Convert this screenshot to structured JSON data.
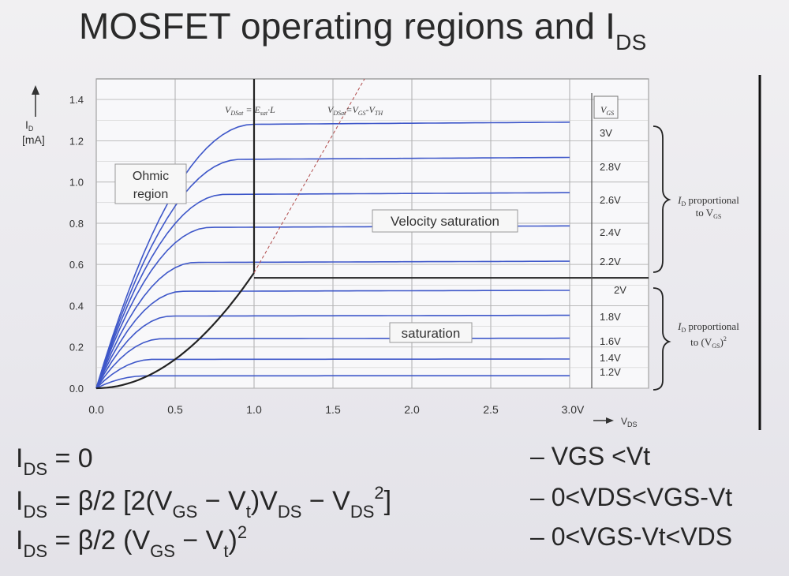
{
  "slide": {
    "title_main": "MOSFET operating regions and I",
    "title_sub": "DS"
  },
  "chart_data": {
    "type": "line",
    "ylabel_line1": "I",
    "ylabel_sub": "D",
    "ylabel_line2": "[mA]",
    "xlabel": "V",
    "xlabel_sub": "DS",
    "xlim": [
      0,
      3.5
    ],
    "ylim": [
      0,
      1.5
    ],
    "x_ticks": [
      "0.0",
      "0.5",
      "1.0",
      "1.5",
      "2.0",
      "2.5",
      "3.0V"
    ],
    "y_ticks": [
      "0.0",
      "0.2",
      "0.4",
      "0.6",
      "0.8",
      "1.0",
      "1.2",
      "1.4"
    ],
    "grid": true,
    "legend_title": "V",
    "legend_title_sub": "GS",
    "series": [
      {
        "name": "3V",
        "saturation_current": 1.28
      },
      {
        "name": "2.8V",
        "saturation_current": 1.11
      },
      {
        "name": "2.6V",
        "saturation_current": 0.94
      },
      {
        "name": "2.4V",
        "saturation_current": 0.78
      },
      {
        "name": "2.2V",
        "saturation_current": 0.61
      },
      {
        "name": "2V",
        "saturation_current": 0.47
      },
      {
        "name": "1.8V",
        "saturation_current": 0.35
      },
      {
        "name": "1.6V",
        "saturation_current": 0.24
      },
      {
        "name": "1.4V",
        "saturation_current": 0.14
      },
      {
        "name": "1.2V",
        "saturation_current": 0.06
      }
    ],
    "annotations": {
      "velocity_boundary": "V",
      "velocity_boundary_sub1": "DSat",
      "velocity_boundary_eq": " = E",
      "velocity_boundary_sub2": "sat",
      "velocity_boundary_tail": "·L",
      "pinchoff_boundary": "V",
      "pinchoff_boundary_sub1": "DSat",
      "pinchoff_boundary_eq": "=V",
      "pinchoff_boundary_sub2": "GS",
      "pinchoff_boundary_mid": "-V",
      "pinchoff_boundary_sub3": "TH",
      "ohmic_line1": "Ohmic",
      "ohmic_line2": "region",
      "velocity_saturation": "Velocity saturation",
      "saturation": "saturation",
      "bracket_top_line1": "I",
      "bracket_top_sub": "D",
      "bracket_top_rest": " proportional",
      "bracket_top_line2": "to V",
      "bracket_top_sub2": "GS",
      "bracket_bottom_line1": "I",
      "bracket_bottom_sub": "D",
      "bracket_bottom_rest": " proportional",
      "bracket_bottom_line2": "to (V",
      "bracket_bottom_sub2": "GS",
      "bracket_bottom_tail": ")",
      "bracket_bottom_exp": "2"
    }
  },
  "equations": [
    {
      "parts": [
        "I",
        "DS",
        " = 0"
      ]
    },
    {
      "parts": [
        "I",
        "DS",
        " = β/2 [2(V",
        "GS",
        " − V",
        "t",
        ")V",
        "DS",
        " − V",
        "DS",
        "2",
        "]"
      ]
    },
    {
      "parts": [
        "I",
        "DS",
        " = β/2 (V",
        "GS",
        " − V",
        "t",
        ")",
        "2"
      ]
    }
  ],
  "conditions": [
    "– VGS <Vt",
    "– 0<VDS<VGS-Vt",
    "– 0<VGS-Vt<VDS"
  ]
}
